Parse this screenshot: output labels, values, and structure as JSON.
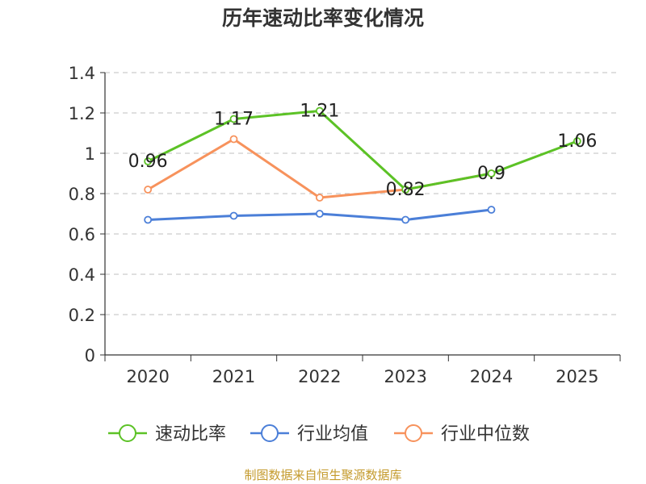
{
  "chart_data": {
    "type": "line",
    "title": "历年速动比率变化情况",
    "categories": [
      "2020",
      "2021",
      "2022",
      "2023",
      "2024",
      "2025"
    ],
    "series": [
      {
        "name": "速动比率",
        "color": "#5cc226",
        "values": [
          0.96,
          1.17,
          1.21,
          0.82,
          0.9,
          1.06
        ],
        "labels": [
          "0.96",
          "1.17",
          "1.21",
          "0.82",
          "0.9",
          "1.06"
        ],
        "show_labels": true
      },
      {
        "name": "行业均值",
        "color": "#4b7fd8",
        "values": [
          0.67,
          0.69,
          0.7,
          0.67,
          0.72,
          null
        ],
        "show_labels": false
      },
      {
        "name": "行业中位数",
        "color": "#f7925c",
        "values": [
          0.82,
          1.07,
          0.78,
          0.82,
          0.9,
          null
        ],
        "show_labels": false
      }
    ],
    "y_ticks": [
      "0",
      "0.2",
      "0.4",
      "0.6",
      "0.8",
      "1",
      "1.2",
      "1.4"
    ],
    "ylim": [
      0,
      1.4
    ],
    "grid": true,
    "legend_position": "bottom"
  },
  "source": "制图数据来自恒生聚源数据库"
}
